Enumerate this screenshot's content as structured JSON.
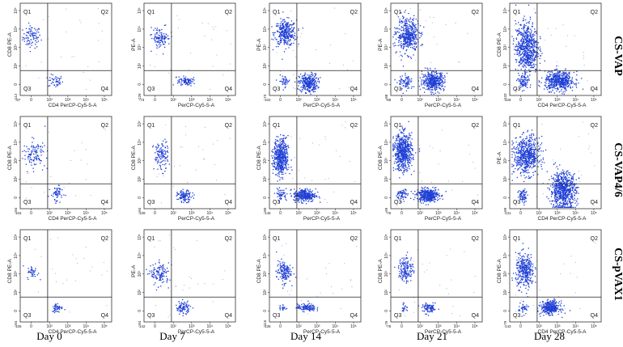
{
  "chart_data": {
    "type": "scatter",
    "description_axes": "flow cytometry dot plots, x = CD4 PerCP-Cy5-5-A, y = CD8 PE-A, biexponential scale",
    "days": [
      "Day 0",
      "Day 7",
      "Day 14",
      "Day  21",
      "Day 28"
    ],
    "groups": [
      "CS-VAP",
      "CS-VAP4/6",
      "CS-pVAX1"
    ],
    "quadrant_labels": [
      "Q1",
      "Q2",
      "Q3",
      "Q4"
    ],
    "x_ticks": [
      "0",
      "10²",
      "10³",
      "10⁴",
      "10⁵"
    ],
    "y_ticks": [
      "0",
      "10²",
      "10³",
      "10⁴",
      "10⁵"
    ],
    "point_color": "#1f3fd6",
    "plots": [
      {
        "group": "CS-VAP",
        "day": "Day 0",
        "xlabel": "CD4 PerCP-Cy5-5-A",
        "ylabel": "CD8 PE-A",
        "x_min": "-87",
        "y_min": "-112",
        "clusters": [
          {
            "quadrant": "Q1",
            "cx": 0.12,
            "cy": 0.64,
            "sx": 0.05,
            "sy": 0.06,
            "n": 90
          },
          {
            "quadrant": "Q4",
            "cx": 0.38,
            "cy": 0.16,
            "sx": 0.04,
            "sy": 0.035,
            "n": 45
          }
        ]
      },
      {
        "group": "CS-VAP",
        "day": "Day 7",
        "xlabel": "PerCP-Cy5-5-A",
        "ylabel": "PE-A",
        "x_min": "-73",
        "y_min": "-126",
        "clusters": [
          {
            "quadrant": "Q1",
            "cx": 0.18,
            "cy": 0.63,
            "sx": 0.05,
            "sy": 0.05,
            "n": 110
          },
          {
            "quadrant": "Q4",
            "cx": 0.45,
            "cy": 0.16,
            "sx": 0.04,
            "sy": 0.025,
            "n": 90
          }
        ]
      },
      {
        "group": "CS-VAP",
        "day": "Day 14",
        "xlabel": "PerCP-Cy5-5-A",
        "ylabel": "PE-A",
        "x_min": "-102",
        "y_min": "-73",
        "clusters": [
          {
            "quadrant": "Q1",
            "cx": 0.17,
            "cy": 0.68,
            "sx": 0.06,
            "sy": 0.07,
            "n": 320
          },
          {
            "quadrant": "Q4",
            "cx": 0.42,
            "cy": 0.14,
            "sx": 0.05,
            "sy": 0.05,
            "n": 300
          },
          {
            "quadrant": "Q3",
            "cx": 0.16,
            "cy": 0.16,
            "sx": 0.03,
            "sy": 0.03,
            "n": 40
          }
        ]
      },
      {
        "group": "CS-VAP",
        "day": "Day  21",
        "xlabel": "PerCP-Cy5-5-A",
        "ylabel": "PE-A",
        "x_min": "-88",
        "y_min": "-88",
        "clusters": [
          {
            "quadrant": "Q1",
            "cx": 0.18,
            "cy": 0.66,
            "sx": 0.06,
            "sy": 0.09,
            "n": 450
          },
          {
            "quadrant": "Q4",
            "cx": 0.46,
            "cy": 0.16,
            "sx": 0.06,
            "sy": 0.05,
            "n": 420
          },
          {
            "quadrant": "Q3",
            "cx": 0.16,
            "cy": 0.14,
            "sx": 0.04,
            "sy": 0.04,
            "n": 80
          }
        ]
      },
      {
        "group": "CS-VAP",
        "day": "Day 28",
        "xlabel": "CD4 PerCP-Cy5-5-A",
        "ylabel": "CD8 PE-A",
        "x_min": "-128",
        "y_min": "-133",
        "clusters": [
          {
            "quadrant": "Q1",
            "cx": 0.18,
            "cy": 0.52,
            "sx": 0.06,
            "sy": 0.14,
            "n": 650
          },
          {
            "quadrant": "Q4",
            "cx": 0.54,
            "cy": 0.16,
            "sx": 0.08,
            "sy": 0.05,
            "n": 500
          },
          {
            "quadrant": "Q3",
            "cx": 0.14,
            "cy": 0.15,
            "sx": 0.03,
            "sy": 0.04,
            "n": 80
          }
        ]
      },
      {
        "group": "CS-VAP4/6",
        "day": "Day 0",
        "xlabel": "CD4 PerCP-Cy5-5-A",
        "ylabel": "CD8 PE-A",
        "x_min": "-104",
        "y_min": "-84",
        "clusters": [
          {
            "quadrant": "Q1",
            "cx": 0.15,
            "cy": 0.6,
            "sx": 0.06,
            "sy": 0.07,
            "n": 110
          },
          {
            "quadrant": "Q4",
            "cx": 0.4,
            "cy": 0.16,
            "sx": 0.035,
            "sy": 0.05,
            "n": 60
          }
        ]
      },
      {
        "group": "CS-VAP4/6",
        "day": "Day 7",
        "xlabel": "PerCP-Cy5-5-A",
        "ylabel": "CD8 PE-A",
        "x_min": "-109",
        "y_min": "-84",
        "clusters": [
          {
            "quadrant": "Q1",
            "cx": 0.18,
            "cy": 0.58,
            "sx": 0.04,
            "sy": 0.08,
            "n": 120
          },
          {
            "quadrant": "Q4",
            "cx": 0.44,
            "cy": 0.14,
            "sx": 0.04,
            "sy": 0.03,
            "n": 110
          }
        ]
      },
      {
        "group": "CS-VAP4/6",
        "day": "Day 14",
        "xlabel": "PerCP-Cy5-5-A",
        "ylabel": "CD8 PE-A",
        "x_min": "-146",
        "y_min": "-80",
        "clusters": [
          {
            "quadrant": "Q1",
            "cx": 0.12,
            "cy": 0.56,
            "sx": 0.04,
            "sy": 0.1,
            "n": 500
          },
          {
            "quadrant": "Q4",
            "cx": 0.38,
            "cy": 0.15,
            "sx": 0.06,
            "sy": 0.035,
            "n": 320
          },
          {
            "quadrant": "Q3",
            "cx": 0.12,
            "cy": 0.16,
            "sx": 0.03,
            "sy": 0.03,
            "n": 50
          }
        ]
      },
      {
        "group": "CS-VAP4/6",
        "day": "Day  21",
        "xlabel": "PerCP-Cy5-5-A",
        "ylabel": "CD8 PE-A",
        "x_min": "-76",
        "y_min": "-69",
        "clusters": [
          {
            "quadrant": "Q1",
            "cx": 0.13,
            "cy": 0.62,
            "sx": 0.05,
            "sy": 0.1,
            "n": 600
          },
          {
            "quadrant": "Q4",
            "cx": 0.4,
            "cy": 0.15,
            "sx": 0.06,
            "sy": 0.035,
            "n": 400
          },
          {
            "quadrant": "Q3",
            "cx": 0.12,
            "cy": 0.16,
            "sx": 0.03,
            "sy": 0.03,
            "n": 60
          }
        ]
      },
      {
        "group": "CS-VAP4/6",
        "day": "Day 28",
        "xlabel": "CD4 PerCP-Cy5-5-A",
        "ylabel": "PE-A",
        "x_min": "-131",
        "y_min": "-89",
        "clusters": [
          {
            "quadrant": "Q1",
            "cx": 0.18,
            "cy": 0.58,
            "sx": 0.07,
            "sy": 0.1,
            "n": 600
          },
          {
            "quadrant": "Q4",
            "cx": 0.58,
            "cy": 0.2,
            "sx": 0.07,
            "sy": 0.1,
            "n": 700
          },
          {
            "quadrant": "Q3",
            "cx": 0.14,
            "cy": 0.15,
            "sx": 0.03,
            "sy": 0.04,
            "n": 70
          }
        ]
      },
      {
        "group": "CS-pVAX1",
        "day": "Day 0",
        "xlabel": "CD4 PerCP-Cy5-5-A",
        "ylabel": "CD8 PE-A",
        "x_min": "-105",
        "y_min": "-84",
        "clusters": [
          {
            "quadrant": "Q1",
            "cx": 0.13,
            "cy": 0.54,
            "sx": 0.03,
            "sy": 0.035,
            "n": 40
          },
          {
            "quadrant": "Q4",
            "cx": 0.4,
            "cy": 0.16,
            "sx": 0.03,
            "sy": 0.025,
            "n": 50
          }
        ]
      },
      {
        "group": "CS-pVAX1",
        "day": "Day 7",
        "xlabel": "PerCP-Cy5-5-A",
        "ylabel": "PE-A",
        "x_min": "-142",
        "y_min": "-84",
        "clusters": [
          {
            "quadrant": "Q1",
            "cx": 0.17,
            "cy": 0.52,
            "sx": 0.05,
            "sy": 0.06,
            "n": 120
          },
          {
            "quadrant": "Q4",
            "cx": 0.42,
            "cy": 0.16,
            "sx": 0.04,
            "sy": 0.035,
            "n": 90
          }
        ]
      },
      {
        "group": "CS-pVAX1",
        "day": "Day 14",
        "xlabel": "PerCP-Cy5-5-A",
        "ylabel": "CD8 PE-A",
        "x_min": "-135",
        "y_min": "-115",
        "clusters": [
          {
            "quadrant": "Q1",
            "cx": 0.15,
            "cy": 0.55,
            "sx": 0.04,
            "sy": 0.06,
            "n": 150
          },
          {
            "quadrant": "Q4",
            "cx": 0.4,
            "cy": 0.16,
            "sx": 0.05,
            "sy": 0.02,
            "n": 120
          },
          {
            "quadrant": "Q3",
            "cx": 0.14,
            "cy": 0.16,
            "sx": 0.02,
            "sy": 0.02,
            "n": 20
          }
        ]
      },
      {
        "group": "CS-pVAX1",
        "day": "Day  21",
        "xlabel": "PerCP-Cy5-5-A",
        "ylabel": "CD8 PE-A",
        "x_min": "-76",
        "y_min": "-76",
        "clusters": [
          {
            "quadrant": "Q1",
            "cx": 0.16,
            "cy": 0.58,
            "sx": 0.04,
            "sy": 0.07,
            "n": 150
          },
          {
            "quadrant": "Q4",
            "cx": 0.42,
            "cy": 0.15,
            "sx": 0.04,
            "sy": 0.025,
            "n": 90
          },
          {
            "quadrant": "Q3",
            "cx": 0.14,
            "cy": 0.16,
            "sx": 0.02,
            "sy": 0.02,
            "n": 20
          }
        ]
      },
      {
        "group": "CS-pVAX1",
        "day": "Day 28",
        "xlabel": "CD4 PerCP-Cy5-5-A",
        "ylabel": "CD8 PE-A",
        "x_min": "-143",
        "y_min": "-79",
        "clusters": [
          {
            "quadrant": "Q1",
            "cx": 0.16,
            "cy": 0.56,
            "sx": 0.05,
            "sy": 0.09,
            "n": 350
          },
          {
            "quadrant": "Q4",
            "cx": 0.44,
            "cy": 0.16,
            "sx": 0.05,
            "sy": 0.035,
            "n": 350
          },
          {
            "quadrant": "Q3",
            "cx": 0.14,
            "cy": 0.15,
            "sx": 0.03,
            "sy": 0.03,
            "n": 40
          }
        ]
      }
    ]
  }
}
